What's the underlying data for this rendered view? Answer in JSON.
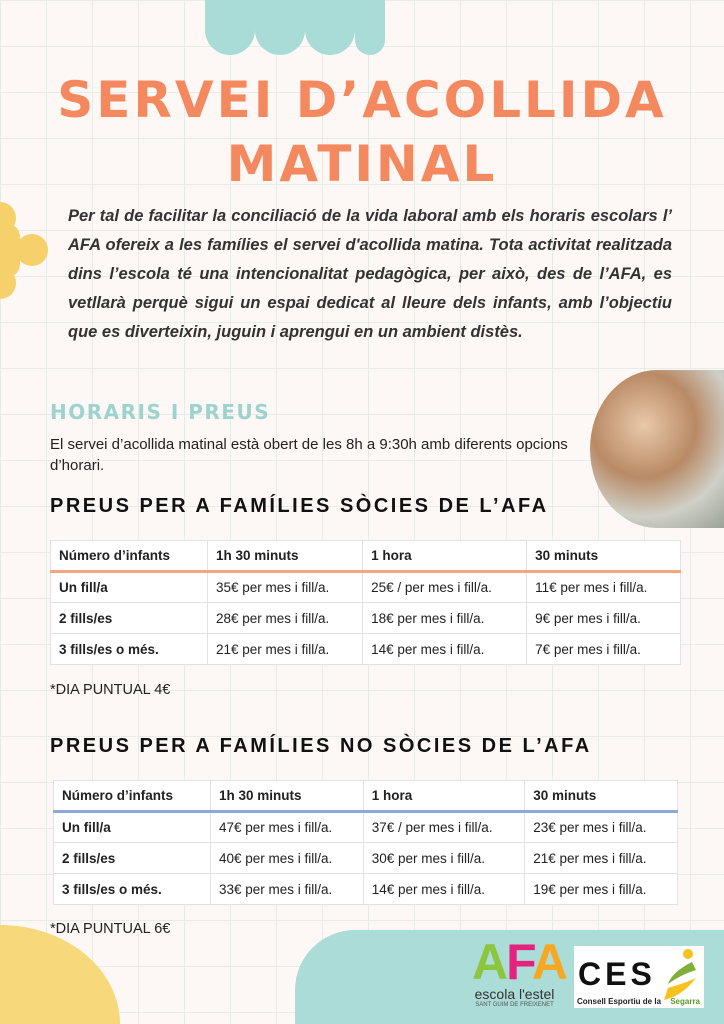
{
  "title": {
    "line1": "SERVEI D’ACOLLIDA",
    "line2": "MATINAL"
  },
  "paragraph": "Per tal de facilitar la conciliació de la vida laboral amb els horaris escolars l’ AFA ofereix a les famílies el servei d'acollida matina. Tota activitat realitzada dins l’escola té una intencionalitat pedagògica, per això, des de l’AFA, es vetllarà perquè sigui un espai dedicat al lleure dels infants, amb l’objectiu que es diverteixin, juguin i aprengui en un ambient distès.",
  "section": {
    "title": "HORARIS I PREUS",
    "intro": "El servei d’acollida matinal està obert de les 8h a 9:30h amb diferents opcions d’horari."
  },
  "members": {
    "heading": "PREUS PER A FAMÍLIES SÒCIES DE L’AFA",
    "accent": "#f4a77d",
    "header": [
      "Número d’infants",
      "1h 30 minuts",
      "1 hora",
      "30 minuts"
    ],
    "rows": [
      [
        "Un fill/a",
        "35€  per mes i fill/a.",
        "25€ / per mes i fill/a.",
        "11€ per mes i fill/a."
      ],
      [
        "2 fills/es",
        "28€ per mes i fill/a.",
        "18€ per mes i fill/a.",
        "9€ per mes i fill/a."
      ],
      [
        "3 fills/es o més.",
        "21€ per mes i fill/a.",
        "14€ per mes i fill/a.",
        "7€ per mes i fill/a."
      ]
    ],
    "note": "*DIA PUNTUAL 4€"
  },
  "nonmembers": {
    "heading": "PREUS PER A FAMÍLIES NO SÒCIES DE L’AFA",
    "accent": "#8fa8d4",
    "header": [
      "Número d’infants",
      "1h 30 minuts",
      "1 hora",
      "30 minuts"
    ],
    "rows": [
      [
        "Un fill/a",
        "47€  per mes i fill/a.",
        "37€ / per mes i fill/a.",
        "23€ per mes i fill/a."
      ],
      [
        "2 fills/es",
        "40€ per mes i fill/a.",
        "30€ per mes i fill/a.",
        "21€ per mes i fill/a."
      ],
      [
        "3 fills/es o més.",
        "33€ per mes i fill/a.",
        "14€ per mes i fill/a.",
        "19€ per mes i fill/a."
      ]
    ],
    "note": "*DIA PUNTUAL 6€"
  },
  "logos": {
    "afa": {
      "letters": [
        "A",
        "F",
        "A"
      ],
      "name": "escola l'estel",
      "place": "SANT GUIM DE FREIXENET"
    },
    "ces": {
      "letters": "CES",
      "name": "Consell Esportiu de la",
      "region": "Segarra"
    }
  }
}
